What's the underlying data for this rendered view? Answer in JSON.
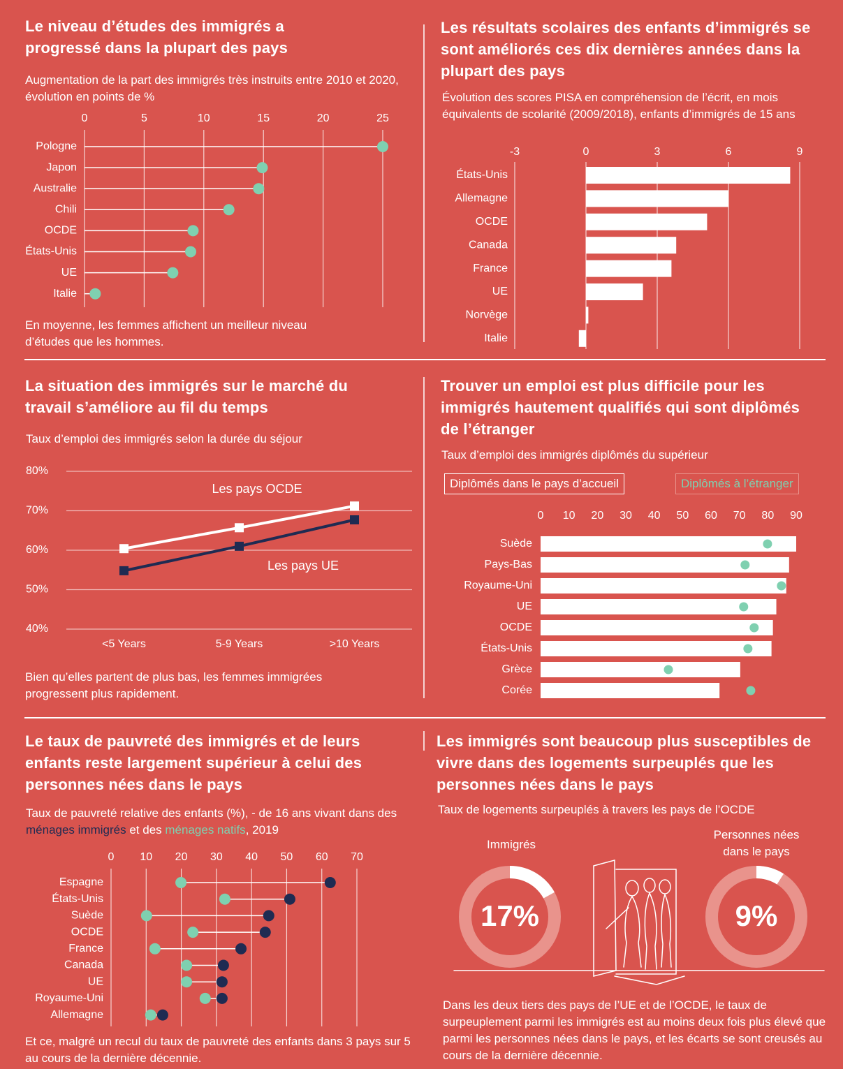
{
  "chart_data": [
    {
      "type": "lollipop",
      "title": "Le niveau d’études des immigrés a progressé dans la plupart des pays",
      "subtitle": "Augmentation de la part des immigrés très instruits entre 2010 et 2020, évolution en points de %",
      "note": "En moyenne, les femmes affichent un meilleur niveau d’études que les hommes.",
      "categories": [
        "Pologne",
        "Japon",
        "Australie",
        "Chili",
        "OCDE",
        "États-Unis",
        "UE",
        "Italie"
      ],
      "values": [
        25,
        14.9,
        14.6,
        12.1,
        9.1,
        8.9,
        7.4,
        0.9
      ],
      "color": "#7fd0b0",
      "xlim": [
        0,
        25
      ],
      "xticks": [
        0,
        5,
        10,
        15,
        20,
        25
      ],
      "grid": true
    },
    {
      "type": "bar",
      "title": "Les résultats scolaires des enfants d’immigrés se sont améliorés ces dix dernières années dans la plupart des pays",
      "subtitle": "Évolution des scores PISA en compréhension de l’écrit, en mois équivalents de scolarité (2009/2018), enfants d’immigrés de 15 ans",
      "categories": [
        "États-Unis",
        "Allemagne",
        "OCDE",
        "Canada",
        "France",
        "UE",
        "Norvège",
        "Italie"
      ],
      "values": [
        8.6,
        6,
        5.1,
        3.8,
        3.6,
        2.4,
        0.1,
        -0.3
      ],
      "color": "#ffffff",
      "xlim": [
        -3,
        9
      ],
      "xticks": [
        -3,
        0,
        3,
        6,
        9
      ],
      "grid": true
    },
    {
      "type": "line",
      "title": "La situation des immigrés sur le marché du travail s’améliore au fil du temps",
      "subtitle": "Taux d’emploi des immigrés selon la durée du séjour",
      "note": "Bien qu’elles partent de plus bas, les femmes immigrées progressent plus rapidement.",
      "categories": [
        "<5 Years",
        "5-9 Years",
        ">10 Years"
      ],
      "series": [
        {
          "name": "Les pays OCDE",
          "color": "#ffffff",
          "values": [
            60.4,
            65.7,
            71.2
          ]
        },
        {
          "name": "Les pays UE",
          "color": "#1f2b52",
          "values": [
            54.8,
            61,
            67.7
          ]
        }
      ],
      "ylim": [
        40,
        80
      ],
      "yticks": [
        {
          "value": 40,
          "label": "40%"
        },
        {
          "value": 50,
          "label": "50%"
        },
        {
          "value": 60,
          "label": "60%"
        },
        {
          "value": 70,
          "label": "70%"
        },
        {
          "value": 80,
          "label": "80%"
        }
      ],
      "grid": true
    },
    {
      "type": "bar",
      "title": "Trouver un emploi est plus difficile pour les immigrés hautement qualifiés qui sont diplômés de l’étranger",
      "subtitle": "Taux d’emploi des immigrés diplômés du supérieur",
      "categories": [
        "Suède",
        "Pays-Bas",
        "Royaume-Uni",
        "UE",
        "OCDE",
        "États-Unis",
        "Grèce",
        "Corée"
      ],
      "series": [
        {
          "name": "Diplômés dans le pays d’accueil",
          "color": "#ffffff",
          "values": [
            90,
            87.5,
            86.5,
            83,
            81.8,
            81.3,
            70.3,
            63
          ]
        },
        {
          "name": "Diplômés à l’étranger",
          "color": "#7fd0b0",
          "marker": "dot",
          "values": [
            79.9,
            72,
            84.8,
            71.5,
            75.2,
            73,
            45,
            74
          ]
        }
      ],
      "xlim": [
        0,
        90
      ],
      "xticks": [
        0,
        10,
        20,
        30,
        40,
        50,
        60,
        70,
        80,
        90
      ],
      "grid": false
    },
    {
      "type": "dumbbell",
      "title": "Le taux de pauvreté des immigrés et de leurs enfants reste largement supérieur à celui des personnes nées dans le pays",
      "subtitle_start": "Taux de pauvreté relative des enfants (%), - de 16 ans vivant dans des",
      "subtitle_middle": "et des",
      "subtitle_end": ", 2019",
      "note": "Et ce, malgré un recul du taux de pauvreté des enfants dans 3 pays sur 5 au cours de la dernière décennie.",
      "categories": [
        "Espagne",
        "États-Unis",
        "Suède",
        "OCDE",
        "France",
        "Canada",
        "UE",
        "Royaume-Uni",
        "Allemagne"
      ],
      "series": [
        {
          "name": "ménages immigrés",
          "color": "#1f2b52",
          "values": [
            62.4,
            50.9,
            44.9,
            43.9,
            37,
            32,
            31.6,
            31.6,
            14.7
          ]
        },
        {
          "name": "ménages natifs",
          "color": "#7fd0b0",
          "values": [
            19.9,
            32.4,
            10.1,
            23.3,
            12.5,
            21.5,
            21.5,
            26.8,
            11.3
          ]
        }
      ],
      "xlim": [
        0,
        70
      ],
      "xticks": [
        0,
        10,
        20,
        30,
        40,
        50,
        60,
        70
      ],
      "grid": true
    },
    {
      "type": "donut",
      "title": "Les immigrés sont beaucoup plus susceptibles de vivre dans des logements surpeuplés que les personnes nées dans le pays",
      "subtitle": "Taux de logements surpeuplés à travers les pays de l’OCDE",
      "note": "Dans les deux tiers des pays de l’UE et de l’OCDE, le taux de surpeuplement parmi les immigrés est au moins deux fois plus élevé que parmi les personnes nées dans le pays, et les écarts se sont creusés au cours de la dernière décennie.",
      "categories": [
        "Immigrés",
        "Personnes nées dans le pays"
      ],
      "values": [
        17,
        9
      ],
      "value_labels": [
        "17%",
        "9%"
      ],
      "color": "#ffffff",
      "track_color": "#e9938c"
    }
  ]
}
